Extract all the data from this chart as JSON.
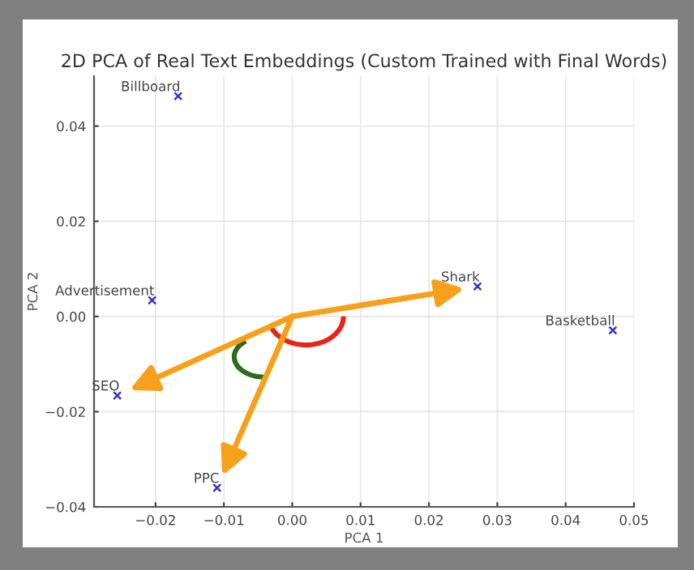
{
  "chart_data": {
    "type": "scatter",
    "title": "2D PCA of Real Text Embeddings (Custom Trained with Final Words)",
    "xlabel": "PCA 1",
    "ylabel": "PCA 2",
    "series": [
      {
        "color": "#3333cc",
        "x": [
          -0.0167,
          -0.0205,
          0.0271,
          0.0469,
          -0.0256,
          -0.011
        ],
        "values": [
          0.0463,
          0.0034,
          0.0063,
          -0.0029,
          -0.0166,
          -0.036
        ]
      }
    ],
    "annotations": [
      {
        "text": "Billboard",
        "x": -0.0167,
        "y": 0.0463
      },
      {
        "text": "Advertisement",
        "x": -0.0205,
        "y": 0.0034
      },
      {
        "text": "Shark",
        "x": 0.0271,
        "y": 0.0063
      },
      {
        "text": "Basketball",
        "x": 0.0469,
        "y": -0.0029
      },
      {
        "text": "SEO",
        "x": -0.0256,
        "y": -0.0166
      },
      {
        "text": "PPC",
        "x": -0.011,
        "y": -0.036
      }
    ],
    "xlim": [
      -0.029,
      0.05
    ],
    "ylim": [
      -0.04,
      0.0505
    ],
    "xticks": [
      {
        "value": -0.02,
        "label": "−0.02"
      },
      {
        "value": -0.01,
        "label": "−0.01"
      },
      {
        "value": 0,
        "label": "0.00"
      },
      {
        "value": 0.01,
        "label": "0.01"
      },
      {
        "value": 0.02,
        "label": "0.02"
      },
      {
        "value": 0.03,
        "label": "0.03"
      },
      {
        "value": 0.04,
        "label": "0.04"
      },
      {
        "value": 0.05,
        "label": "0.05"
      }
    ],
    "yticks": [
      {
        "value": -0.04,
        "label": "−0.04"
      },
      {
        "value": -0.02,
        "label": "−0.02"
      },
      {
        "value": 0,
        "label": "0.00"
      },
      {
        "value": 0.02,
        "label": "0.02"
      },
      {
        "value": 0.04,
        "label": "0.04"
      }
    ],
    "grid": true,
    "marker": "cross"
  }
}
